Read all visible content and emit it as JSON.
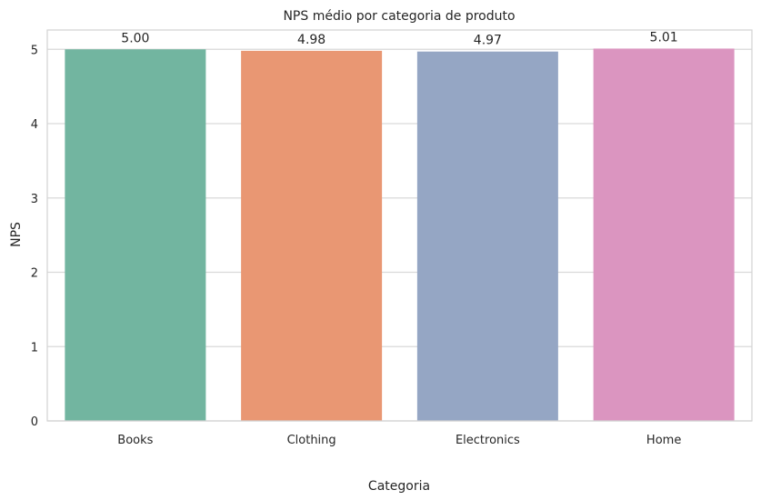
{
  "chart_data": {
    "type": "bar",
    "title": "NPS médio por categoria de produto",
    "xlabel": "Categoria",
    "ylabel": "NPS",
    "categories": [
      "Books",
      "Clothing",
      "Electronics",
      "Home"
    ],
    "values": [
      5.0,
      4.98,
      4.97,
      5.01
    ],
    "value_labels": [
      "5.00",
      "4.98",
      "4.97",
      "5.01"
    ],
    "ylim": [
      0,
      5.26
    ],
    "yticks": [
      0,
      1,
      2,
      3,
      4,
      5
    ],
    "grid": true,
    "colors": [
      "#72b5a0",
      "#e99773",
      "#95a6c4",
      "#db95c0"
    ],
    "grid_color": "#d9d9d9",
    "frame_color": "#d3d3d3"
  }
}
